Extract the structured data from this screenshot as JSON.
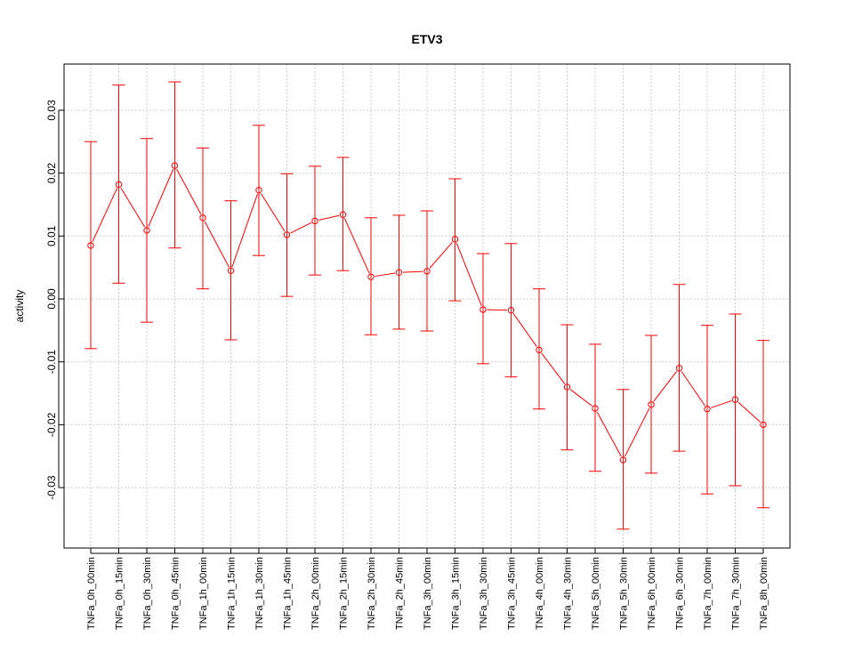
{
  "chart_data": {
    "type": "line",
    "title": "ETV3",
    "xlabel": "",
    "ylabel": "activity",
    "ylim": [
      -0.0395,
      0.0375
    ],
    "yticks": [
      -0.03,
      -0.02,
      -0.01,
      0.0,
      0.01,
      0.02,
      0.03
    ],
    "ytick_labels": [
      "-0.03",
      "-0.02",
      "-0.01",
      "0.00",
      "0.01",
      "0.02",
      "0.03"
    ],
    "grid": true,
    "color": "#ff0000",
    "categories": [
      "TNFa_0h_00min",
      "TNFa_0h_15min",
      "TNFa_0h_30min",
      "TNFa_0h_45min",
      "TNFa_1h_00min",
      "TNFa_1h_15min",
      "TNFa_1h_30min",
      "TNFa_1h_45min",
      "TNFa_2h_00min",
      "TNFa_2h_15min",
      "TNFa_2h_30min",
      "TNFa_2h_45min",
      "TNFa_3h_00min",
      "TNFa_3h_15min",
      "TNFa_3h_30min",
      "TNFa_3h_45min",
      "TNFa_4h_00min",
      "TNFa_4h_30min",
      "TNFa_5h_00min",
      "TNFa_5h_30min",
      "TNFa_6h_00min",
      "TNFa_6h_30min",
      "TNFa_7h_00min",
      "TNFa_7h_30min",
      "TNFa_8h_00min"
    ],
    "values": [
      0.0085,
      0.0182,
      0.0109,
      0.0212,
      0.0129,
      0.0045,
      0.0173,
      0.0102,
      0.0124,
      0.0134,
      0.0035,
      0.0042,
      0.0044,
      0.0095,
      -0.0017,
      -0.0018,
      -0.0081,
      -0.014,
      -0.0174,
      -0.0256,
      -0.0168,
      -0.011,
      -0.0175,
      -0.016,
      -0.02
    ],
    "upper": [
      0.025,
      0.034,
      0.0255,
      0.0345,
      0.024,
      0.0156,
      0.0276,
      0.0199,
      0.0211,
      0.0225,
      0.0129,
      0.0133,
      0.014,
      0.0191,
      0.0072,
      0.0088,
      0.0016,
      -0.0041,
      -0.0072,
      -0.0144,
      -0.0058,
      0.0023,
      -0.0042,
      -0.0024,
      -0.0066
    ],
    "lower": [
      -0.0079,
      0.0025,
      -0.0037,
      0.0081,
      0.0016,
      -0.0065,
      0.0069,
      0.0004,
      0.0038,
      0.0045,
      -0.0057,
      -0.0048,
      -0.0051,
      -0.0003,
      -0.0103,
      -0.0124,
      -0.0175,
      -0.024,
      -0.0274,
      -0.0366,
      -0.0277,
      -0.0242,
      -0.031,
      -0.0297,
      -0.0332
    ]
  }
}
